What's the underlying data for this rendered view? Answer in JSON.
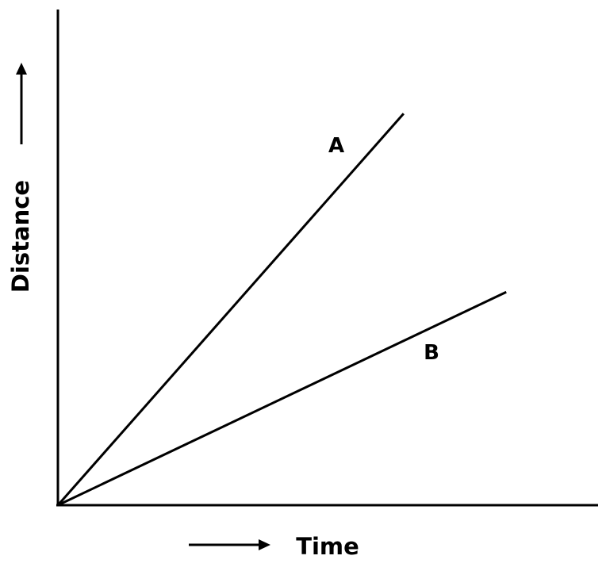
{
  "chart_data": {
    "type": "line",
    "title": "",
    "xlabel": "Time",
    "ylabel": "Distance",
    "xlim": [
      0,
      10
    ],
    "ylim": [
      0,
      10
    ],
    "grid": false,
    "axis_ticks": false,
    "series": [
      {
        "name": "A",
        "x": [
          0,
          6.4
        ],
        "y": [
          0,
          7.9
        ]
      },
      {
        "name": "B",
        "x": [
          0,
          8.3
        ],
        "y": [
          0,
          4.3
        ]
      }
    ]
  },
  "colors": {
    "axis": "#000000",
    "series": "#000000",
    "background": "#ffffff"
  }
}
